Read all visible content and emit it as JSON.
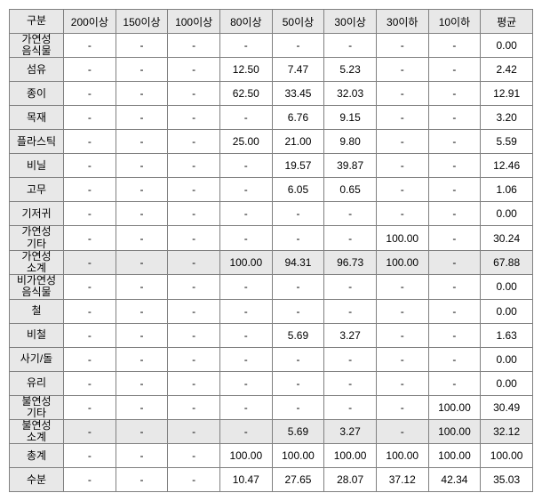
{
  "columns": [
    "구분",
    "200이상",
    "150이상",
    "100이상",
    "80이상",
    "50이상",
    "30이상",
    "30이하",
    "10이하",
    "평균"
  ],
  "rows": [
    {
      "label": "가연성\n음식물",
      "cells": [
        "-",
        "-",
        "-",
        "-",
        "-",
        "-",
        "-",
        "-",
        "0.00"
      ],
      "subtotal": false
    },
    {
      "label": "섬유",
      "cells": [
        "-",
        "-",
        "-",
        "12.50",
        "7.47",
        "5.23",
        "-",
        "-",
        "2.42"
      ],
      "subtotal": false
    },
    {
      "label": "종이",
      "cells": [
        "-",
        "-",
        "-",
        "62.50",
        "33.45",
        "32.03",
        "-",
        "-",
        "12.91"
      ],
      "subtotal": false
    },
    {
      "label": "목재",
      "cells": [
        "-",
        "-",
        "-",
        "-",
        "6.76",
        "9.15",
        "-",
        "-",
        "3.20"
      ],
      "subtotal": false
    },
    {
      "label": "플라스틱",
      "cells": [
        "-",
        "-",
        "-",
        "25.00",
        "21.00",
        "9.80",
        "-",
        "-",
        "5.59"
      ],
      "subtotal": false
    },
    {
      "label": "비닐",
      "cells": [
        "-",
        "-",
        "-",
        "-",
        "19.57",
        "39.87",
        "-",
        "-",
        "12.46"
      ],
      "subtotal": false
    },
    {
      "label": "고무",
      "cells": [
        "-",
        "-",
        "-",
        "-",
        "6.05",
        "0.65",
        "-",
        "-",
        "1.06"
      ],
      "subtotal": false
    },
    {
      "label": "기저귀",
      "cells": [
        "-",
        "-",
        "-",
        "-",
        "-",
        "-",
        "-",
        "-",
        "0.00"
      ],
      "subtotal": false
    },
    {
      "label": "가연성\n기타",
      "cells": [
        "-",
        "-",
        "-",
        "-",
        "-",
        "-",
        "100.00",
        "-",
        "30.24"
      ],
      "subtotal": false
    },
    {
      "label": "가연성\n소계",
      "cells": [
        "-",
        "-",
        "-",
        "100.00",
        "94.31",
        "96.73",
        "100.00",
        "-",
        "67.88"
      ],
      "subtotal": true
    },
    {
      "label": "비가연성\n음식물",
      "cells": [
        "-",
        "-",
        "-",
        "-",
        "-",
        "-",
        "-",
        "-",
        "0.00"
      ],
      "subtotal": false
    },
    {
      "label": "철",
      "cells": [
        "-",
        "-",
        "-",
        "-",
        "-",
        "-",
        "-",
        "-",
        "0.00"
      ],
      "subtotal": false
    },
    {
      "label": "비철",
      "cells": [
        "-",
        "-",
        "-",
        "-",
        "5.69",
        "3.27",
        "-",
        "-",
        "1.63"
      ],
      "subtotal": false
    },
    {
      "label": "사기/돌",
      "cells": [
        "-",
        "-",
        "-",
        "-",
        "-",
        "-",
        "-",
        "-",
        "0.00"
      ],
      "subtotal": false
    },
    {
      "label": "유리",
      "cells": [
        "-",
        "-",
        "-",
        "-",
        "-",
        "-",
        "-",
        "-",
        "0.00"
      ],
      "subtotal": false
    },
    {
      "label": "불연성\n기타",
      "cells": [
        "-",
        "-",
        "-",
        "-",
        "-",
        "-",
        "-",
        "100.00",
        "30.49"
      ],
      "subtotal": false
    },
    {
      "label": "불연성\n소계",
      "cells": [
        "-",
        "-",
        "-",
        "-",
        "5.69",
        "3.27",
        "-",
        "100.00",
        "32.12"
      ],
      "subtotal": true
    },
    {
      "label": "총계",
      "cells": [
        "-",
        "-",
        "-",
        "100.00",
        "100.00",
        "100.00",
        "100.00",
        "100.00",
        "100.00"
      ],
      "subtotal": false
    },
    {
      "label": "수분",
      "cells": [
        "-",
        "-",
        "-",
        "10.47",
        "27.65",
        "28.07",
        "37.12",
        "42.34",
        "35.03"
      ],
      "subtotal": false
    }
  ]
}
